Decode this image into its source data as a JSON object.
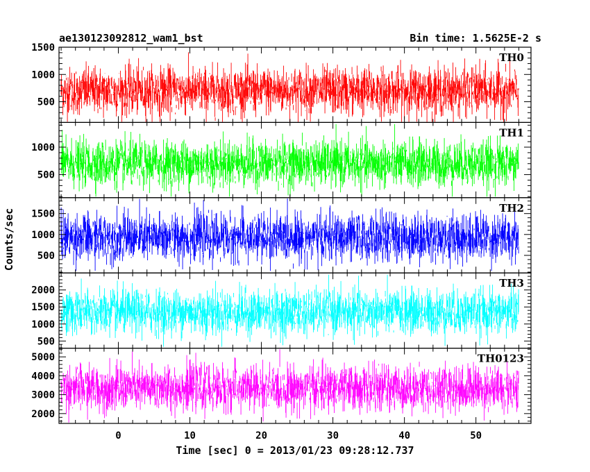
{
  "chart_data": {
    "type": "line",
    "title_left": "ae130123092812_wam1_bst",
    "title_right": "Bin time: 1.5625E-2 s",
    "xlabel": "Time [sec] 0 = 2013/01/23 09:28:12.737",
    "ylabel": "Counts/sec",
    "xlim": [
      -8.3,
      57.7
    ],
    "x_data_range": [
      -8.0,
      56.0
    ],
    "x_ticks": [
      0,
      10,
      20,
      30,
      40,
      50
    ],
    "x_minor_step": 2,
    "grid": false,
    "panels": [
      {
        "name": "TH0",
        "color": "#ff0000",
        "ylim": [
          120,
          1500
        ],
        "y_ticks": [
          500,
          1000,
          1500
        ],
        "y_minor_step": 100,
        "level": 700,
        "spread": 480,
        "min": 130,
        "max": 1490
      },
      {
        "name": "TH1",
        "color": "#00ff00",
        "ylim": [
          80,
          1450
        ],
        "y_ticks": [
          500,
          1000
        ],
        "y_minor_step": 100,
        "level": 700,
        "spread": 460,
        "min": 100,
        "max": 1420
      },
      {
        "name": "TH2",
        "color": "#0000ff",
        "ylim": [
          80,
          1880
        ],
        "y_ticks": [
          500,
          1000,
          1500
        ],
        "y_minor_step": 100,
        "level": 930,
        "spread": 620,
        "min": 130,
        "max": 1860
      },
      {
        "name": "TH3",
        "color": "#00ffff",
        "ylim": [
          290,
          2500
        ],
        "y_ticks": [
          500,
          1000,
          1500,
          2000
        ],
        "y_minor_step": 100,
        "level": 1350,
        "spread": 720,
        "min": 330,
        "max": 2450
      },
      {
        "name": "TH0123",
        "color": "#ff00ff",
        "ylim": [
          1480,
          5460
        ],
        "y_ticks": [
          2000,
          3000,
          4000,
          5000
        ],
        "y_minor_step": 200,
        "level": 3350,
        "spread": 1300,
        "min": 1500,
        "max": 5400
      }
    ]
  }
}
